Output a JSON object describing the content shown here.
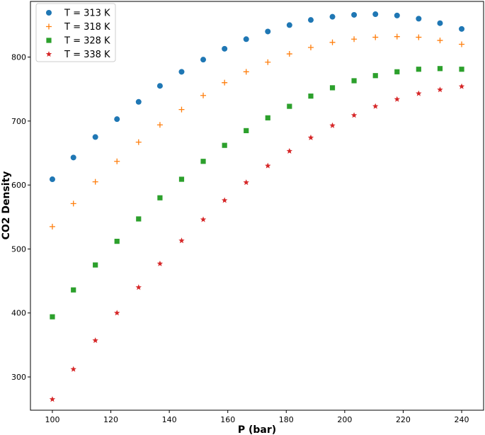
{
  "chart_data": {
    "type": "scatter",
    "title": "",
    "xlabel": "P (bar)",
    "ylabel": "CO2 Density",
    "xlim": [
      92.5,
      247.5
    ],
    "ylim": [
      248,
      887
    ],
    "xticks": [
      100,
      120,
      140,
      160,
      180,
      200,
      220,
      240
    ],
    "yticks": [
      300,
      400,
      500,
      600,
      700,
      800
    ],
    "grid": false,
    "legend_position": "top-left",
    "x": [
      100.0,
      107.2,
      114.7,
      122.1,
      129.5,
      136.8,
      144.2,
      151.6,
      158.9,
      166.3,
      173.7,
      181.1,
      188.4,
      195.8,
      203.2,
      210.5,
      217.9,
      225.3,
      232.6,
      240.0
    ],
    "series": [
      {
        "name": "T = 313 K",
        "marker": "circle",
        "color": "#1f77b4",
        "values": [
          609,
          643,
          675,
          703,
          730,
          755,
          777,
          796,
          813,
          828,
          840,
          850,
          858,
          863,
          866,
          867,
          865,
          860,
          853,
          844
        ]
      },
      {
        "name": "T = 318 K",
        "marker": "plus",
        "color": "#ff7f0e",
        "values": [
          535,
          571,
          605,
          637,
          667,
          694,
          718,
          740,
          760,
          777,
          792,
          805,
          815,
          823,
          828,
          831,
          832,
          831,
          826,
          820
        ]
      },
      {
        "name": "T = 328 K",
        "marker": "square",
        "color": "#2ca02c",
        "values": [
          394,
          436,
          475,
          512,
          547,
          580,
          609,
          637,
          662,
          685,
          705,
          723,
          739,
          752,
          763,
          771,
          777,
          781,
          782,
          781
        ]
      },
      {
        "name": "T = 338 K",
        "marker": "star",
        "color": "#d62728",
        "values": [
          265,
          312,
          357,
          400,
          440,
          477,
          513,
          546,
          576,
          604,
          630,
          653,
          674,
          693,
          709,
          723,
          734,
          743,
          749,
          754
        ]
      }
    ]
  }
}
